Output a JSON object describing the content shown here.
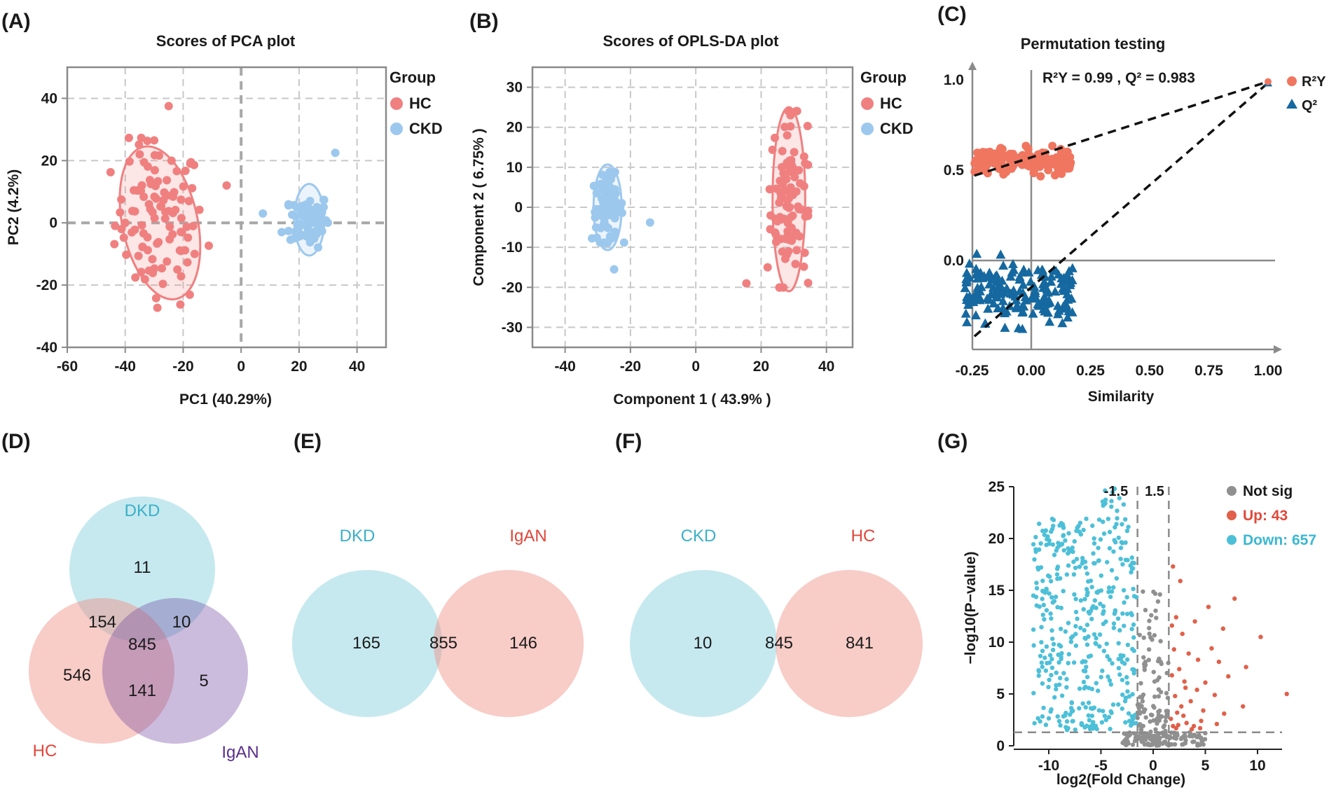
{
  "panels": {
    "A": "(A)",
    "B": "(B)",
    "C": "(C)",
    "D": "(D)",
    "E": "(E)",
    "F": "(F)",
    "G": "(G)"
  },
  "colors": {
    "hc": "#f08080",
    "ckd": "#9cc8ee",
    "r2y": "#f07660",
    "q2": "#1569a0",
    "teal": "#5bbfd2",
    "salmon": "#ef8f82",
    "purple": "#6a3f9e",
    "grey": "#909090",
    "up": "#e0604a",
    "down": "#4cc0d8"
  },
  "chart_data": [
    {
      "id": "A",
      "type": "scatter",
      "title": "Scores of PCA plot",
      "xlabel": "PC1  (40.29%)",
      "ylabel": "PC2  (4.2%)",
      "xlim": [
        -60,
        50
      ],
      "ylim": [
        -40,
        50
      ],
      "xticks": [
        -60,
        -40,
        -20,
        0,
        20,
        40
      ],
      "yticks": [
        -40,
        -20,
        0,
        20,
        40
      ],
      "legend_title": "Group",
      "series": [
        {
          "name": "HC",
          "center": [
            -28,
            0
          ],
          "ellipse_semi_axes": [
            13,
            25
          ],
          "ellipse_rotation_deg": -12,
          "n_points": 100,
          "spread": [
            8,
            13
          ],
          "outliers": [
            [
              -25,
              37.5
            ],
            [
              -30,
              26.5
            ],
            [
              -5,
              12
            ],
            [
              -18,
              7
            ],
            [
              -35,
              22
            ],
            [
              -40,
              0
            ],
            [
              -22,
              -15
            ]
          ]
        },
        {
          "name": "CKD",
          "center": [
            23.5,
            1
          ],
          "ellipse_semi_axes": [
            5.2,
            11.5
          ],
          "ellipse_rotation_deg": 0,
          "n_points": 80,
          "spread": [
            3.4,
            4.3
          ],
          "outliers": [
            [
              32.5,
              22.5
            ],
            [
              7.5,
              3
            ],
            [
              14,
              -3
            ]
          ]
        }
      ]
    },
    {
      "id": "B",
      "type": "scatter",
      "title": "Scores of OPLS-DA plot",
      "xlabel": "Component  1  ( 43.9% )",
      "ylabel": "Component  2  ( 6.75% )",
      "xlim": [
        -50,
        48
      ],
      "ylim": [
        -35,
        35
      ],
      "xticks": [
        -40,
        -20,
        0,
        20,
        40
      ],
      "yticks": [
        -30,
        -20,
        -10,
        0,
        10,
        20,
        30
      ],
      "legend_title": "Group",
      "series": [
        {
          "name": "HC",
          "center": [
            28.5,
            2
          ],
          "ellipse_semi_axes": [
            5,
            23
          ],
          "ellipse_rotation_deg": 0,
          "n_points": 95,
          "spread": [
            2.8,
            10.5
          ],
          "outliers": [
            [
              15.5,
              -19
            ],
            [
              29,
              23
            ],
            [
              22,
              -15
            ]
          ]
        },
        {
          "name": "CKD",
          "center": [
            -27,
            0
          ],
          "ellipse_semi_axes": [
            4.3,
            10.7
          ],
          "ellipse_rotation_deg": 0,
          "n_points": 80,
          "spread": [
            2.4,
            4.2
          ],
          "outliers": [
            [
              -14,
              -3.8
            ],
            [
              -25,
              -15.5
            ],
            [
              -26,
              7
            ]
          ]
        }
      ]
    },
    {
      "id": "C",
      "type": "scatter",
      "title": "Permutation testing",
      "annotation": "R²Y = 0.99 ,  Q² = 0.983",
      "xlabel": "Similarity",
      "ylabel": "",
      "xlim": [
        -0.32,
        1.0
      ],
      "ylim": [
        -0.48,
        1.1
      ],
      "xticks": [
        "-0.25",
        "0.00",
        "0.25",
        "0.50",
        "0.75",
        "1.00"
      ],
      "yticks": [
        "0.0",
        "0.5",
        "1.0"
      ],
      "series": [
        {
          "name": "R²Y",
          "marker": "circle",
          "x_range": [
            -0.24,
            0.17
          ],
          "y_center": 0.55,
          "y_spread": 0.035,
          "n_points": 160,
          "final_point": [
            1.0,
            0.99
          ],
          "regression_line": [
            [
              -0.24,
              0.47
            ],
            [
              1.0,
              0.99
            ]
          ]
        },
        {
          "name": "Q²",
          "marker": "triangle",
          "x_range": [
            -0.28,
            0.18
          ],
          "y_center": -0.17,
          "y_spread": 0.08,
          "n_points": 170,
          "final_point": [
            1.0,
            0.983
          ],
          "regression_line": [
            [
              -0.24,
              -0.42
            ],
            [
              1.0,
              0.983
            ]
          ]
        }
      ]
    },
    {
      "id": "G",
      "type": "scatter",
      "title": "",
      "xlabel": "log2(Fold Change)",
      "ylabel": "−log10(P−value)",
      "xlim": [
        -12.5,
        14
      ],
      "ylim": [
        0,
        25
      ],
      "xticks": [
        -10,
        -5,
        0,
        5,
        10
      ],
      "yticks": [
        0,
        5,
        10,
        15,
        20,
        25
      ],
      "thresholds": {
        "fc_lower": -1.5,
        "fc_upper": 1.5,
        "p_line": 1.3
      },
      "threshold_labels": [
        "-1.5",
        "1.5"
      ],
      "series": [
        {
          "name": "Not sig",
          "count": 300,
          "x_range": [
            -1.5,
            1.5
          ]
        },
        {
          "name": "Up: 43",
          "count": 43,
          "x_range": [
            1.5,
            13
          ]
        },
        {
          "name": "Down: 657",
          "count": 657,
          "x_range": [
            -12,
            -1.5
          ]
        }
      ]
    }
  ],
  "venn": {
    "D": {
      "labels": {
        "top": "DKD",
        "left": "HC",
        "right": "IgAN"
      },
      "values": {
        "dkd_only": "11",
        "hc_dkd": "154",
        "dkd_igan": "10",
        "all": "845",
        "hc_only": "546",
        "hc_igan": "141",
        "igan_only": "5"
      }
    },
    "E": {
      "labels": {
        "left": "DKD",
        "right": "IgAN"
      },
      "values": {
        "left": "165",
        "both": "855",
        "right": "146"
      }
    },
    "F": {
      "labels": {
        "left": "CKD",
        "right": "HC"
      },
      "values": {
        "left": "10",
        "both": "845",
        "right": "841"
      }
    }
  }
}
